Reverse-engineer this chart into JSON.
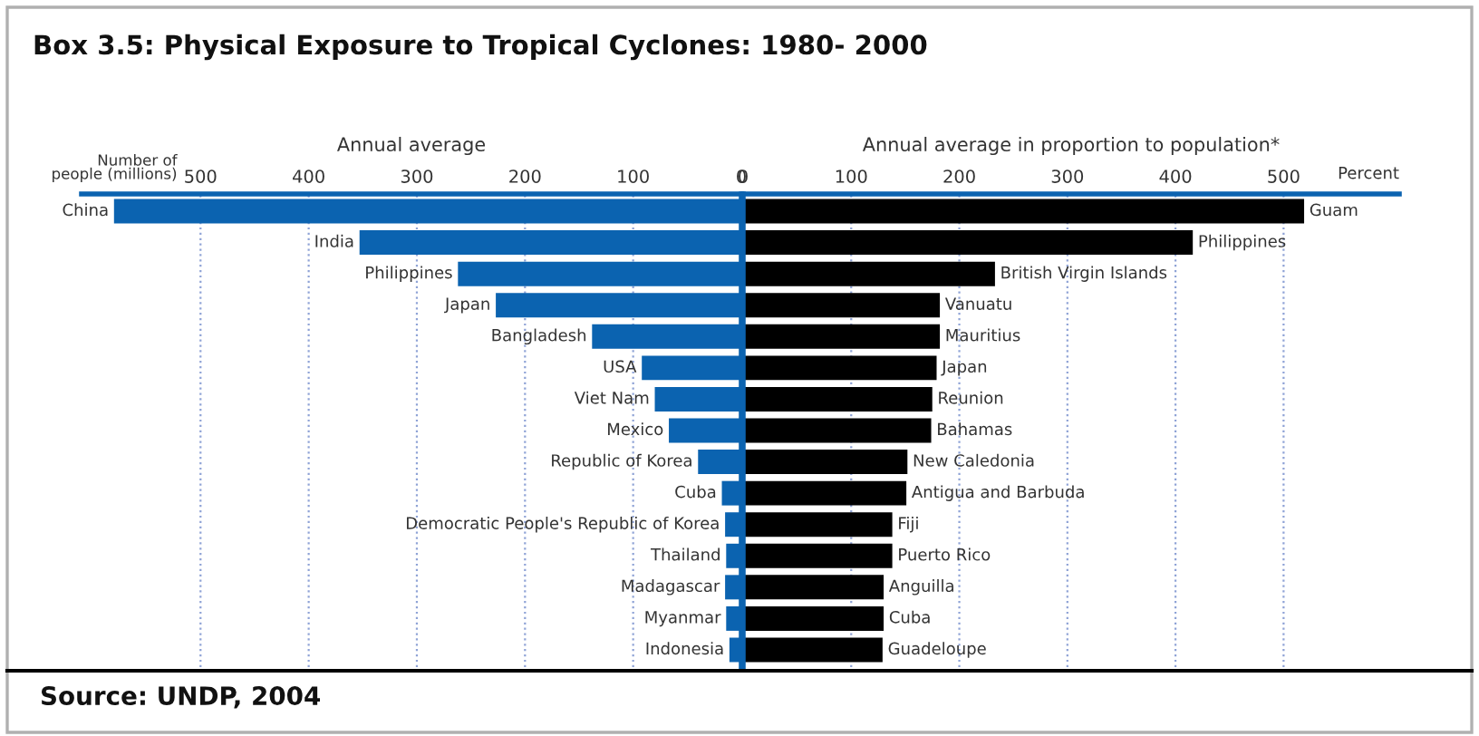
{
  "chart_data": [
    {
      "type": "bar",
      "orientation": "horizontal",
      "title": "Box 3.5: Physical Exposure to Tropical Cyclones: 1980- 2000",
      "subtitle": "Annual average",
      "xlabel": "Number of\npeople (millions)",
      "categories": [
        "China",
        "India",
        "Philippines",
        "Japan",
        "Bangladesh",
        "USA",
        "Viet Nam",
        "Mexico",
        "Republic of Korea",
        "Cuba",
        "Democratic People's Republic of Korea",
        "Thailand",
        "Madagascar",
        "Myanmar",
        "Indonesia"
      ],
      "values": [
        580,
        353,
        262,
        227,
        138,
        92,
        80,
        67,
        40,
        18,
        15,
        14,
        15,
        14,
        11
      ],
      "color": "#0b63b0",
      "xlim": [
        610,
        0
      ],
      "xticks": [
        500,
        400,
        300,
        200,
        100,
        0
      ],
      "grid": "x",
      "annotations": [
        "Source: UNDP, 2004"
      ]
    },
    {
      "type": "bar",
      "orientation": "horizontal",
      "subtitle": "Annual average in proportion to population*",
      "xlabel": "Percent",
      "categories": [
        "Guam",
        "Philippines",
        "British Virgin Islands",
        "Vanuatu",
        "Mauritius",
        "Japan",
        "Reunion",
        "Bahamas",
        "New Caledonia",
        "Antigua and Barbuda",
        "Fiji",
        "Puerto Rico",
        "Anguilla",
        "Cuba",
        "Guadeloupe"
      ],
      "values": [
        519,
        416,
        233,
        182,
        182,
        179,
        175,
        174,
        152,
        151,
        138,
        138,
        130,
        130,
        129
      ],
      "color": "#000000",
      "xlim": [
        0,
        607
      ],
      "xticks": [
        0,
        100,
        200,
        300,
        400,
        500
      ],
      "grid": "x"
    }
  ]
}
